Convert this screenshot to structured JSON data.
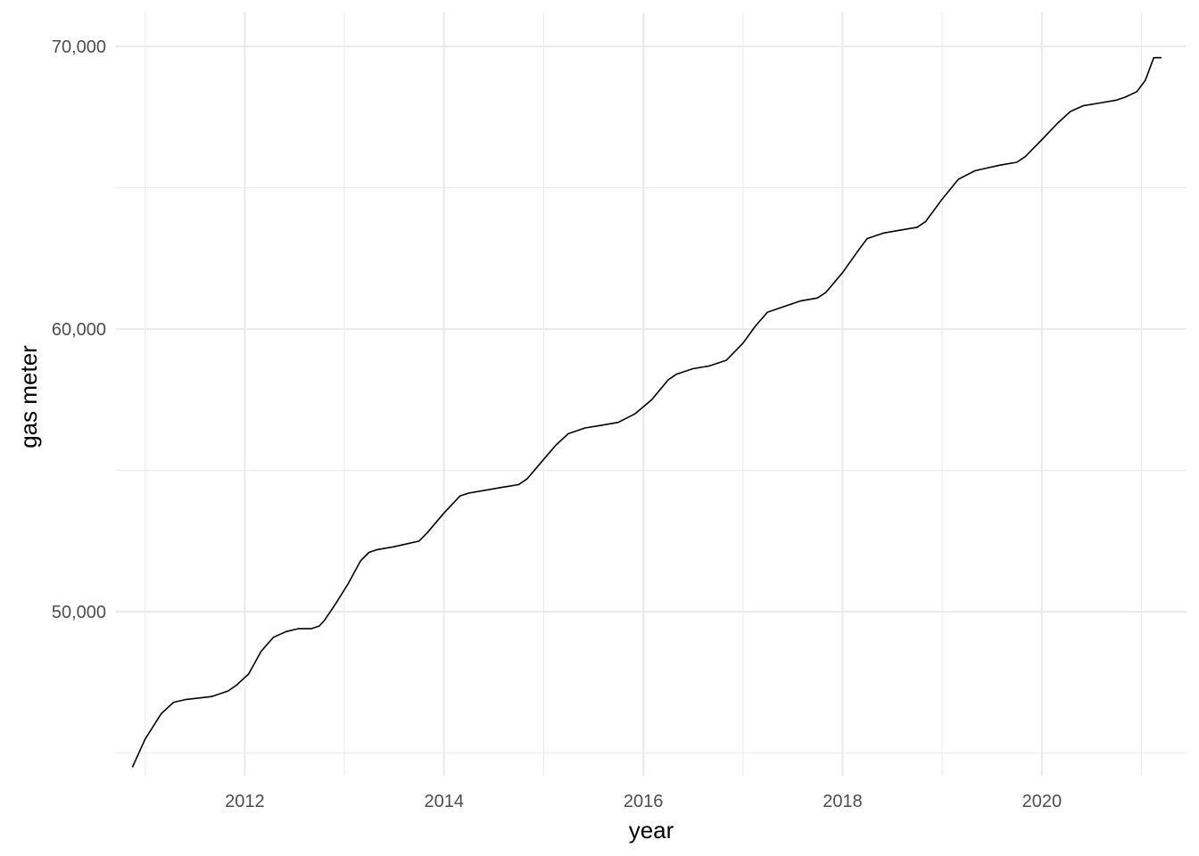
{
  "chart_data": {
    "type": "line",
    "xlabel": "year",
    "ylabel": "gas meter",
    "xlim": [
      "2010-09-16",
      "2021-06-15"
    ],
    "ylim": [
      44200,
      71200
    ],
    "x_ticks": [
      "2012",
      "2014",
      "2016",
      "2018",
      "2020"
    ],
    "y_ticks": [
      "50,000",
      "60,000",
      "70,000"
    ],
    "grid": true,
    "legend": "none",
    "line_color": "#000000",
    "series": [
      {
        "x": [
          "2010-11-15",
          "2011-01-01",
          "2011-03-01",
          "2011-04-15",
          "2011-06-01",
          "2011-09-01",
          "2011-11-01",
          "2011-12-01",
          "2012-01-15",
          "2012-03-01",
          "2012-04-15",
          "2012-06-01",
          "2012-07-15",
          "2012-09-01",
          "2012-10-01",
          "2012-10-20",
          "2012-12-01",
          "2013-01-15",
          "2013-03-01",
          "2013-04-01",
          "2013-05-01",
          "2013-07-01",
          "2013-10-01",
          "2013-11-01",
          "2014-01-01",
          "2014-03-01",
          "2014-04-01",
          "2014-06-01",
          "2014-08-01",
          "2014-10-01",
          "2014-11-01",
          "2014-12-15",
          "2015-02-15",
          "2015-04-01",
          "2015-06-01",
          "2015-08-01",
          "2015-10-01",
          "2015-12-01",
          "2016-02-01",
          "2016-04-01",
          "2016-05-01",
          "2016-07-01",
          "2016-09-01",
          "2016-11-01",
          "2017-01-01",
          "2017-02-15",
          "2017-04-01",
          "2017-06-01",
          "2017-08-01",
          "2017-10-01",
          "2017-11-01",
          "2018-01-01",
          "2018-03-01",
          "2018-04-01",
          "2018-06-01",
          "2018-08-01",
          "2018-10-01",
          "2018-11-01",
          "2019-01-01",
          "2019-03-01",
          "2019-05-01",
          "2019-06-15",
          "2019-08-01",
          "2019-10-01",
          "2019-11-01",
          "2020-01-01",
          "2020-03-01",
          "2020-04-15",
          "2020-06-01",
          "2020-08-01",
          "2020-10-01",
          "2020-11-01",
          "2020-12-15",
          "2021-01-15",
          "2021-02-15",
          "2021-03-15"
        ],
        "values": [
          44500,
          45500,
          46400,
          46800,
          46900,
          47000,
          47200,
          47400,
          47800,
          48600,
          49100,
          49300,
          49400,
          49400,
          49500,
          49700,
          50300,
          51000,
          51800,
          52100,
          52200,
          52300,
          52500,
          52800,
          53500,
          54100,
          54200,
          54300,
          54400,
          54500,
          54700,
          55200,
          55900,
          56300,
          56500,
          56600,
          56700,
          57000,
          57500,
          58200,
          58400,
          58600,
          58700,
          58900,
          59500,
          60100,
          60600,
          60800,
          61000,
          61100,
          61300,
          62000,
          62800,
          63200,
          63400,
          63500,
          63600,
          63800,
          64600,
          65300,
          65600,
          65700,
          65800,
          65900,
          66100,
          66700,
          67300,
          67700,
          67900,
          68000,
          68100,
          68200,
          68400,
          68800,
          69600,
          69600
        ]
      }
    ]
  }
}
